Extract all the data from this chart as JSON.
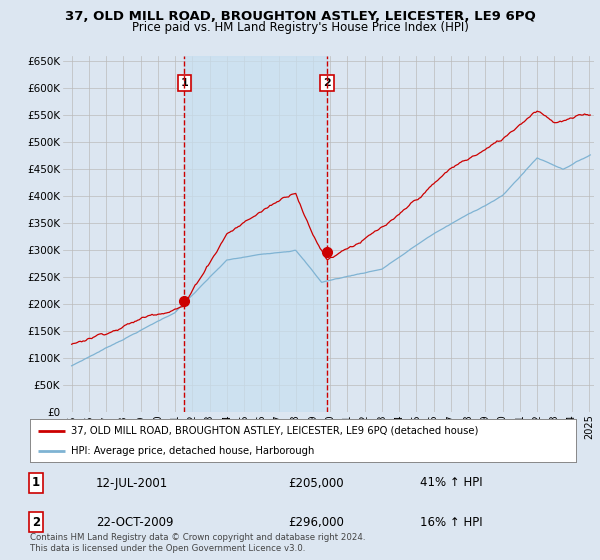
{
  "title": "37, OLD MILL ROAD, BROUGHTON ASTLEY, LEICESTER, LE9 6PQ",
  "subtitle": "Price paid vs. HM Land Registry's House Price Index (HPI)",
  "legend_line1": "37, OLD MILL ROAD, BROUGHTON ASTLEY, LEICESTER, LE9 6PQ (detached house)",
  "legend_line2": "HPI: Average price, detached house, Harborough",
  "footer": "Contains HM Land Registry data © Crown copyright and database right 2024.\nThis data is licensed under the Open Government Licence v3.0.",
  "sale1_label": "1",
  "sale1_date": "12-JUL-2001",
  "sale1_price": "£205,000",
  "sale1_hpi": "41% ↑ HPI",
  "sale2_label": "2",
  "sale2_date": "22-OCT-2009",
  "sale2_price": "£296,000",
  "sale2_hpi": "16% ↑ HPI",
  "sale1_x": 2001.53,
  "sale1_y": 205000,
  "sale2_x": 2009.81,
  "sale2_y": 296000,
  "vline1_x": 2001.53,
  "vline2_x": 2009.81,
  "red_color": "#cc0000",
  "blue_color": "#7fb3d3",
  "vline_color": "#cc0000",
  "bg_color": "#dce6f1",
  "plot_bg": "#dce6f1",
  "shade_color": "#c8dff0",
  "grid_color": "#bbbbbb",
  "ylim": [
    0,
    660000
  ],
  "yticks": [
    0,
    50000,
    100000,
    150000,
    200000,
    250000,
    300000,
    350000,
    400000,
    450000,
    500000,
    550000,
    600000,
    650000
  ],
  "xlim_start": 1994.5,
  "xlim_end": 2025.3
}
